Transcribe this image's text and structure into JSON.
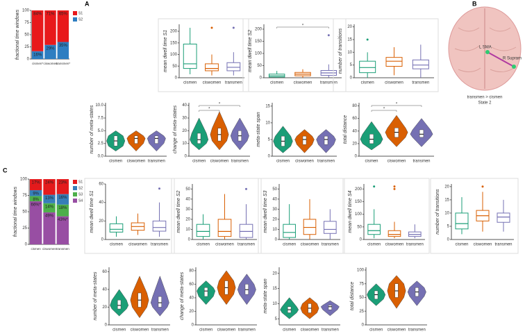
{
  "panel_labels": [
    "A",
    "B",
    "C"
  ],
  "brain_map": {
    "labels": [
      "L SMA",
      "R Supram"
    ],
    "caption": [
      "transmen > cismen",
      "State 2"
    ]
  },
  "chart_data": [
    {
      "type": "stacked_bar",
      "ylabel": "fractional time windows",
      "categories": [
        "cismen*",
        "ciswomen",
        "transmen*"
      ],
      "ylim": [
        0,
        100
      ],
      "yticks": [
        0,
        25,
        50,
        75,
        100
      ],
      "series": [
        {
          "name": "S2",
          "color": "#2e7ec1",
          "values": [
            16,
            29,
            35
          ],
          "value_labels": [
            "16%",
            "29%",
            "35%"
          ]
        },
        {
          "name": "S1",
          "color": "#e8191b",
          "values": [
            84,
            71,
            65
          ],
          "value_labels": [
            "84%",
            "71%",
            "65%"
          ]
        }
      ]
    },
    {
      "type": "box",
      "ylabel": "mean dwell time S1",
      "categories": [
        "cismen",
        "ciswomen",
        "transmen"
      ],
      "colors": [
        "#1b9e77",
        "#d95f02",
        "#7570b3"
      ],
      "ylim": [
        0,
        230
      ],
      "yticks": [
        0,
        50,
        100,
        150,
        200
      ],
      "boxes": [
        {
          "min": 15,
          "q1": 40,
          "median": 60,
          "q3": 145,
          "max": 215,
          "outliers": []
        },
        {
          "min": 10,
          "q1": 30,
          "median": 40,
          "q3": 60,
          "max": 100,
          "outliers": [
            215
          ]
        },
        {
          "min": 10,
          "q1": 30,
          "median": 45,
          "q3": 65,
          "max": 110,
          "outliers": [
            215
          ]
        }
      ]
    },
    {
      "type": "box",
      "ylabel": "mean dwell time S2",
      "categories": [
        "cismen",
        "ciswomen",
        "transmen"
      ],
      "colors": [
        "#1b9e77",
        "#d95f02",
        "#7570b3"
      ],
      "ylim": [
        0,
        220
      ],
      "yticks": [
        0,
        50,
        100,
        150,
        200
      ],
      "boxes": [
        {
          "min": 0,
          "q1": 3,
          "median": 8,
          "q3": 15,
          "max": 28,
          "outliers": []
        },
        {
          "min": 0,
          "q1": 8,
          "median": 15,
          "q3": 22,
          "max": 35,
          "outliers": []
        },
        {
          "min": 0,
          "q1": 10,
          "median": 20,
          "q3": 30,
          "max": 55,
          "outliers": [
            175
          ]
        }
      ],
      "significance": [
        {
          "pair": [
            "cismen",
            "transmen"
          ],
          "label": "*"
        }
      ]
    },
    {
      "type": "box",
      "ylabel": "number of transitions",
      "categories": [
        "cismen",
        "ciswomen",
        "transmen"
      ],
      "colors": [
        "#1b9e77",
        "#d95f02",
        "#7570b3"
      ],
      "ylim": [
        0,
        21
      ],
      "yticks": [
        0,
        5,
        10,
        15,
        20
      ],
      "boxes": [
        {
          "min": 0,
          "q1": 2,
          "median": 4,
          "q3": 6.5,
          "max": 10,
          "outliers": [
            15
          ]
        },
        {
          "min": 1,
          "q1": 4.5,
          "median": 6.5,
          "q3": 8,
          "max": 12,
          "outliers": []
        },
        {
          "min": 0,
          "q1": 3.5,
          "median": 5,
          "q3": 7,
          "max": 13,
          "outliers": []
        }
      ]
    },
    {
      "type": "violin",
      "ylabel": "number of meta-states",
      "categories": [
        "cismen",
        "ciswomen",
        "transmen"
      ],
      "colors": [
        "#1b9e77",
        "#d95f02",
        "#7570b3"
      ],
      "ylim": [
        0,
        10.5
      ],
      "yticks": [
        {
          "value": 0,
          "label": "0.0"
        },
        {
          "value": 2.5,
          "label": "2.5"
        },
        {
          "value": 5,
          "label": "5.0"
        },
        {
          "value": 7.5,
          "label": "7.5"
        },
        {
          "value": 10,
          "label": "10.0"
        }
      ],
      "boxes": [
        {
          "min": 1,
          "q1": 2,
          "median": 3,
          "q3": 4,
          "max": 5
        },
        {
          "min": 1,
          "q1": 2.5,
          "median": 3.5,
          "q3": 4,
          "max": 5
        },
        {
          "min": 1,
          "q1": 2.5,
          "median": 3.5,
          "q3": 4,
          "max": 5
        }
      ]
    },
    {
      "type": "violin",
      "ylabel": "change of meta-states",
      "categories": [
        "cismen",
        "ciswomen",
        "transmen"
      ],
      "colors": [
        "#1b9e77",
        "#d95f02",
        "#7570b3"
      ],
      "ylim": [
        0,
        42
      ],
      "yticks": [
        0,
        10,
        20,
        30,
        40
      ],
      "boxes": [
        {
          "min": 5,
          "q1": 10,
          "median": 13,
          "q3": 18,
          "max": 30
        },
        {
          "min": 5,
          "q1": 12,
          "median": 17,
          "q3": 22,
          "max": 35
        },
        {
          "min": 5,
          "q1": 12,
          "median": 16,
          "q3": 20,
          "max": 30
        }
      ],
      "significance": [
        {
          "pair": [
            "cismen",
            "ciswomen"
          ],
          "label": "*"
        },
        {
          "pair": [
            "cismen",
            "transmen"
          ],
          "label": "*"
        }
      ]
    },
    {
      "type": "violin",
      "ylabel": "meta-state span",
      "categories": [
        "cismen",
        "ciswomen",
        "transmen"
      ],
      "colors": [
        "#1b9e77",
        "#d95f02",
        "#7570b3"
      ],
      "ylim": [
        0,
        16
      ],
      "yticks": [
        0,
        5,
        10,
        15
      ],
      "boxes": [
        {
          "min": 1,
          "q1": 3,
          "median": 4.5,
          "q3": 6,
          "max": 9
        },
        {
          "min": 1,
          "q1": 3.5,
          "median": 5,
          "q3": 6,
          "max": 8
        },
        {
          "min": 1,
          "q1": 3.5,
          "median": 5,
          "q3": 6,
          "max": 8
        }
      ]
    },
    {
      "type": "violin",
      "ylabel": "total distance",
      "categories": [
        "cismen",
        "ciswomen",
        "transmen"
      ],
      "colors": [
        "#1b9e77",
        "#d95f02",
        "#7570b3"
      ],
      "ylim": [
        0,
        85
      ],
      "yticks": [
        0,
        20,
        40,
        60,
        80
      ],
      "boxes": [
        {
          "min": 10,
          "q1": 20,
          "median": 27,
          "q3": 35,
          "max": 55
        },
        {
          "min": 15,
          "q1": 30,
          "median": 38,
          "q3": 45,
          "max": 65
        },
        {
          "min": 15,
          "q1": 30,
          "median": 35,
          "q3": 42,
          "max": 60
        }
      ],
      "significance": [
        {
          "pair": [
            "cismen",
            "ciswomen"
          ],
          "label": "*"
        },
        {
          "pair": [
            "cismen",
            "transmen"
          ],
          "label": "*"
        }
      ]
    },
    {
      "type": "stacked_bar",
      "ylabel": "fractional time windows",
      "categories": [
        "cismen",
        "ciswomen",
        "transmen"
      ],
      "ylim": [
        0,
        100
      ],
      "yticks": [
        0,
        25,
        50,
        75,
        100
      ],
      "series": [
        {
          "name": "S4",
          "color": "#984ea3",
          "values": [
            66,
            49,
            43
          ],
          "value_labels": [
            "66%*",
            "49%",
            "43%*"
          ]
        },
        {
          "name": "S3",
          "color": "#4daf4a",
          "values": [
            8,
            14,
            18
          ],
          "value_labels": [
            "8%",
            "14%",
            "18%"
          ]
        },
        {
          "name": "S2",
          "color": "#377eb8",
          "values": [
            9,
            13,
            16
          ],
          "value_labels": [
            "9%",
            "13%",
            "16%"
          ]
        },
        {
          "name": "S1",
          "color": "#e41a1c",
          "values": [
            17,
            24,
            23
          ],
          "value_labels": [
            "17%",
            "24%",
            "23%"
          ]
        }
      ]
    },
    {
      "type": "box",
      "ylabel": "mean dwell time S1",
      "categories": [
        "cismen",
        "ciswomen",
        "transmen"
      ],
      "colors": [
        "#1b9e77",
        "#d95f02",
        "#7570b3"
      ],
      "ylim": [
        0,
        60
      ],
      "yticks": [
        0,
        20,
        40,
        60
      ],
      "boxes": [
        {
          "min": 3,
          "q1": 8,
          "median": 11,
          "q3": 17,
          "max": 25,
          "outliers": []
        },
        {
          "min": 5,
          "q1": 10,
          "median": 14,
          "q3": 18,
          "max": 28,
          "outliers": []
        },
        {
          "min": 3,
          "q1": 9,
          "median": 13,
          "q3": 20,
          "max": 40,
          "outliers": [
            55
          ]
        }
      ]
    },
    {
      "type": "box",
      "ylabel": "mean dwell time S2",
      "categories": [
        "cismen",
        "ciswomen",
        "transmen"
      ],
      "colors": [
        "#1b9e77",
        "#d95f02",
        "#7570b3"
      ],
      "ylim": [
        0,
        55
      ],
      "yticks": [
        0,
        10,
        20,
        30,
        40,
        50
      ],
      "boxes": [
        {
          "min": 0,
          "q1": 3,
          "median": 8,
          "q3": 15,
          "max": 25,
          "outliers": []
        },
        {
          "min": 0,
          "q1": 3,
          "median": 8,
          "q3": 20,
          "max": 45,
          "outliers": []
        },
        {
          "min": 0,
          "q1": 2,
          "median": 8,
          "q3": 15,
          "max": 35,
          "outliers": [
            50
          ]
        }
      ]
    },
    {
      "type": "box",
      "ylabel": "mean dwell time S3",
      "categories": [
        "cismen",
        "ciswomen",
        "transmen"
      ],
      "colors": [
        "#1b9e77",
        "#d95f02",
        "#7570b3"
      ],
      "ylim": [
        0,
        55
      ],
      "yticks": [
        0,
        10,
        20,
        30,
        40,
        50
      ],
      "boxes": [
        {
          "min": 0,
          "q1": 2,
          "median": 7,
          "q3": 15,
          "max": 35,
          "outliers": []
        },
        {
          "min": 0,
          "q1": 5,
          "median": 12,
          "q3": 20,
          "max": 40,
          "outliers": []
        },
        {
          "min": 0,
          "q1": 6,
          "median": 10,
          "q3": 18,
          "max": 30,
          "outliers": []
        }
      ]
    },
    {
      "type": "box",
      "ylabel": "mean dwell time S4",
      "categories": [
        "cismen",
        "ciswomen",
        "transmen"
      ],
      "colors": [
        "#1b9e77",
        "#d95f02",
        "#7570b3"
      ],
      "ylim": [
        0,
        220
      ],
      "yticks": [
        0,
        50,
        100,
        150,
        200
      ],
      "boxes": [
        {
          "min": 5,
          "q1": 20,
          "median": 35,
          "q3": 60,
          "max": 120,
          "outliers": [
            210
          ]
        },
        {
          "min": 5,
          "q1": 12,
          "median": 20,
          "q3": 35,
          "max": 70,
          "outliers": [
            200,
            210
          ]
        },
        {
          "min": 5,
          "q1": 12,
          "median": 20,
          "q3": 30,
          "max": 60,
          "outliers": []
        }
      ]
    },
    {
      "type": "box",
      "ylabel": "number of transitions",
      "categories": [
        "cismen",
        "ciswomen",
        "transmen"
      ],
      "colors": [
        "#1b9e77",
        "#d95f02",
        "#7570b3"
      ],
      "ylim": [
        0,
        21
      ],
      "yticks": [
        0,
        5,
        10,
        15,
        20
      ],
      "boxes": [
        {
          "min": 2,
          "q1": 4,
          "median": 6,
          "q3": 10,
          "max": 16,
          "outliers": []
        },
        {
          "min": 3,
          "q1": 7,
          "median": 9,
          "q3": 11,
          "max": 18,
          "outliers": [
            20
          ]
        },
        {
          "min": 3,
          "q1": 6.5,
          "median": 8.5,
          "q3": 10,
          "max": 15,
          "outliers": []
        }
      ]
    },
    {
      "type": "violin",
      "ylabel": "number of meta-states",
      "categories": [
        "cismen",
        "ciswomen",
        "transmen"
      ],
      "colors": [
        "#1b9e77",
        "#d95f02",
        "#7570b3"
      ],
      "ylim": [
        0,
        65
      ],
      "yticks": [
        0,
        20,
        40,
        60
      ],
      "boxes": [
        {
          "min": 10,
          "q1": 18,
          "median": 22,
          "q3": 28,
          "max": 40
        },
        {
          "min": 8,
          "q1": 20,
          "median": 28,
          "q3": 36,
          "max": 55
        },
        {
          "min": 10,
          "q1": 20,
          "median": 25,
          "q3": 32,
          "max": 55
        }
      ]
    },
    {
      "type": "violin",
      "ylabel": "change of meta-states",
      "categories": [
        "cismen",
        "ciswomen",
        "transmen"
      ],
      "colors": [
        "#1b9e77",
        "#d95f02",
        "#7570b3"
      ],
      "ylim": [
        0,
        85
      ],
      "yticks": [
        0,
        20,
        40,
        60,
        80
      ],
      "boxes": [
        {
          "min": 30,
          "q1": 42,
          "median": 50,
          "q3": 55,
          "max": 65
        },
        {
          "min": 30,
          "q1": 45,
          "median": 55,
          "q3": 65,
          "max": 80
        },
        {
          "min": 30,
          "q1": 45,
          "median": 52,
          "q3": 60,
          "max": 75
        }
      ]
    },
    {
      "type": "violin",
      "ylabel": "meta-state span",
      "categories": [
        "cismen",
        "ciswomen",
        "transmen"
      ],
      "colors": [
        "#1b9e77",
        "#d95f02",
        "#7570b3"
      ],
      "ylim": [
        3,
        22
      ],
      "yticks": [
        5,
        10,
        15,
        20
      ],
      "boxes": [
        {
          "min": 5,
          "q1": 7,
          "median": 8,
          "q3": 9,
          "max": 12
        },
        {
          "min": 5,
          "q1": 7,
          "median": 8.5,
          "q3": 10,
          "max": 12
        },
        {
          "min": 6,
          "q1": 8,
          "median": 9,
          "q3": 9.5,
          "max": 11
        }
      ]
    },
    {
      "type": "violin",
      "ylabel": "total distance",
      "categories": [
        "cismen",
        "ciswomen",
        "transmen"
      ],
      "colors": [
        "#1b9e77",
        "#d95f02",
        "#7570b3"
      ],
      "ylim": [
        0,
        105
      ],
      "yticks": [
        0,
        25,
        50,
        75,
        100
      ],
      "boxes": [
        {
          "min": 35,
          "q1": 47,
          "median": 55,
          "q3": 62,
          "max": 75
        },
        {
          "min": 30,
          "q1": 50,
          "median": 62,
          "q3": 75,
          "max": 90
        },
        {
          "min": 35,
          "q1": 52,
          "median": 60,
          "q3": 68,
          "max": 80
        }
      ]
    }
  ]
}
